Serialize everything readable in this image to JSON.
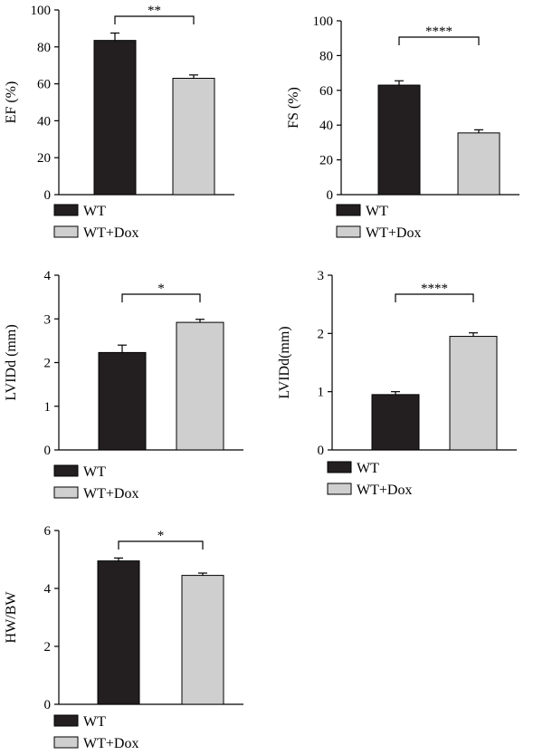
{
  "colors": {
    "WT": "#231f20",
    "WT+Dox": "#cfcfcf"
  },
  "chart_data": [
    {
      "type": "bar",
      "ylabel": "EF (%)",
      "categories": [
        "WT",
        "WT+Dox"
      ],
      "values": [
        83.5,
        63
      ],
      "errors": [
        4,
        1.8
      ],
      "ylim": [
        0,
        100
      ],
      "yticks": [
        "0",
        "20",
        "40",
        "60",
        "80",
        "100"
      ],
      "significance": "**",
      "legend": [
        "WT",
        "WT+Dox"
      ]
    },
    {
      "type": "bar",
      "ylabel": "FS (%)",
      "categories": [
        "WT",
        "WT+Dox"
      ],
      "values": [
        63,
        35.5
      ],
      "errors": [
        2.5,
        1.8
      ],
      "ylim": [
        0,
        100
      ],
      "yticks": [
        "0",
        "20",
        "40",
        "60",
        "80",
        "100"
      ],
      "significance": "****",
      "legend": [
        "WT",
        "WT+Dox"
      ]
    },
    {
      "type": "bar",
      "ylabel": "LVIDd (mm)",
      "categories": [
        "WT",
        "WT+Dox"
      ],
      "values": [
        2.23,
        2.92
      ],
      "errors": [
        0.17,
        0.07
      ],
      "ylim": [
        0,
        4
      ],
      "yticks": [
        "0",
        "1",
        "2",
        "3",
        "4"
      ],
      "significance": "*",
      "legend": [
        "WT",
        "WT+Dox"
      ]
    },
    {
      "type": "bar",
      "ylabel": "LVIDd(mm)",
      "categories": [
        "WT",
        "WT+Dox"
      ],
      "values": [
        0.95,
        1.95
      ],
      "errors": [
        0.05,
        0.06
      ],
      "ylim": [
        0,
        3
      ],
      "yticks": [
        "0",
        "1",
        "2",
        "3"
      ],
      "significance": "****",
      "legend": [
        "WT",
        "WT+Dox"
      ]
    },
    {
      "type": "bar",
      "ylabel": "HW/BW",
      "categories": [
        "WT",
        "WT+Dox"
      ],
      "values": [
        4.95,
        4.45
      ],
      "errors": [
        0.1,
        0.08
      ],
      "ylim": [
        0,
        6
      ],
      "yticks": [
        "0",
        "2",
        "4",
        "6"
      ],
      "significance": "*",
      "legend": [
        "WT",
        "WT+Dox"
      ]
    }
  ]
}
